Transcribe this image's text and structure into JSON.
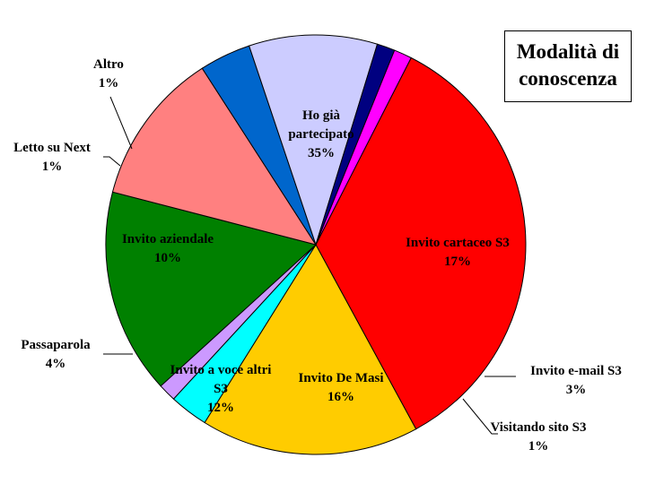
{
  "chart_data": {
    "type": "pie",
    "title_lines": [
      "Modalità di",
      "conoscenza"
    ],
    "start_angle_deg": -63,
    "slices": [
      {
        "label_lines": [
          "Ho già",
          "partecipato"
        ],
        "pct_label": "35%",
        "value": 35,
        "color": "#ff0000"
      },
      {
        "label_lines": [
          "Invito cartaceo S3"
        ],
        "pct_label": "17%",
        "value": 17,
        "color": "#ffcc00"
      },
      {
        "label_lines": [
          "Invito e-mail S3"
        ],
        "pct_label": "3%",
        "value": 3,
        "color": "#00ffff"
      },
      {
        "label_lines": [
          "Visitando sito S3"
        ],
        "pct_label": "1%",
        "value": 1.4,
        "color": "#cc99ff"
      },
      {
        "label_lines": [
          "Invito De Masi"
        ],
        "pct_label": "16%",
        "value": 16,
        "color": "#008000"
      },
      {
        "label_lines": [
          "Invito a voce altri",
          "S3"
        ],
        "pct_label": "12%",
        "value": 12,
        "color": "#ff8080"
      },
      {
        "label_lines": [
          "Passaparola"
        ],
        "pct_label": "4%",
        "value": 4,
        "color": "#0066cc"
      },
      {
        "label_lines": [
          "Invito aziendale"
        ],
        "pct_label": "10%",
        "value": 10,
        "color": "#ccccff"
      },
      {
        "label_lines": [
          "Letto su Next"
        ],
        "pct_label": "1%",
        "value": 1.4,
        "color": "#000080"
      },
      {
        "label_lines": [
          "Altro"
        ],
        "pct_label": "1%",
        "value": 1.4,
        "color": "#ff00ff"
      }
    ]
  }
}
